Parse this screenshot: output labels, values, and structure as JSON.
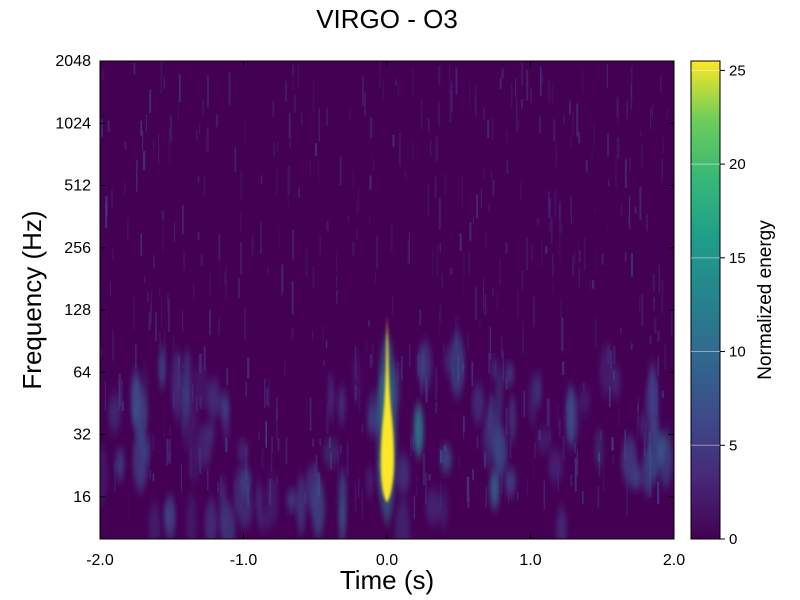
{
  "chart_data": {
    "type": "heatmap",
    "title": "VIRGO - O3",
    "xlabel": "Time (s)",
    "ylabel": "Frequency (Hz)",
    "xlim": [
      -2.0,
      2.0
    ],
    "ylim": [
      10,
      2048
    ],
    "yscale": "log2",
    "x_ticks": [
      -2.0,
      -1.0,
      0.0,
      1.0,
      2.0
    ],
    "x_tick_labels": [
      "-2.0",
      "-1.0",
      "0.0",
      "1.0",
      "2.0"
    ],
    "y_ticks": [
      16,
      32,
      64,
      128,
      256,
      512,
      1024,
      2048
    ],
    "y_tick_labels": [
      "16",
      "32",
      "64",
      "128",
      "256",
      "512",
      "1024",
      "2048"
    ],
    "colorbar": {
      "label": "Normalized energy",
      "range": [
        0,
        25.5
      ],
      "ticks": [
        0,
        5,
        10,
        15,
        20,
        25
      ],
      "tick_labels": [
        "0",
        "5",
        "10",
        "15",
        "20",
        "25"
      ],
      "colormap": "viridis"
    },
    "grid": false,
    "features": [
      {
        "t": 0.0,
        "f_low": 15,
        "f_high": 120,
        "energy": 25.5
      },
      {
        "t": 0.22,
        "f_low": 25,
        "f_high": 45,
        "energy": 12
      },
      {
        "t": 0.75,
        "f_low": 14,
        "f_high": 22,
        "energy": 9
      },
      {
        "t": -1.75,
        "f_low": 35,
        "f_high": 65,
        "energy": 7
      },
      {
        "t": 1.28,
        "f_low": 28,
        "f_high": 55,
        "energy": 7
      },
      {
        "t": 1.85,
        "f_low": 35,
        "f_high": 70,
        "energy": 6
      }
    ]
  },
  "colors": {
    "viridis_low": "#440154",
    "viridis_mid": "#21918c",
    "viridis_high": "#fde725",
    "frame": "#000000"
  }
}
